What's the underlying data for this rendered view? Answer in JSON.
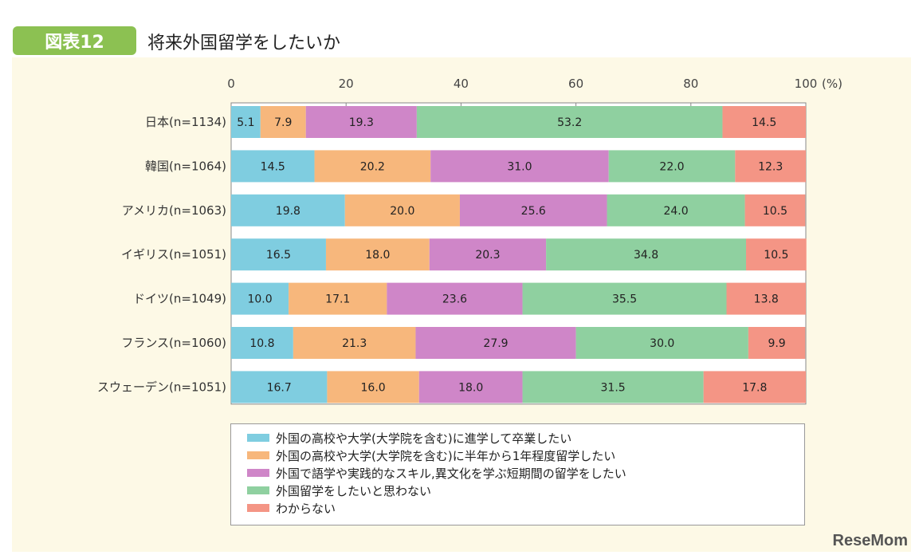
{
  "header": {
    "badge": "図表12",
    "title": "将来外国留学をしたいか"
  },
  "watermark": "ReseMom",
  "chart_data": {
    "type": "bar",
    "stacked": true,
    "orientation": "horizontal",
    "title": "将来外国留学をしたいか",
    "xlim": [
      0,
      100
    ],
    "xticks": [
      0,
      20,
      40,
      60,
      80,
      100
    ],
    "xunit": "(%)",
    "categories": [
      "日本(n=1134)",
      "韓国(n=1064)",
      "アメリカ(n=1063)",
      "イギリス(n=1051)",
      "ドイツ(n=1049)",
      "フランス(n=1060)",
      "スウェーデン(n=1051)"
    ],
    "series": [
      {
        "name": "外国の高校や大学(大学院を含む)に進学して卒業したい",
        "color": "#7fcde0",
        "values": [
          5.1,
          14.5,
          19.8,
          16.5,
          10.0,
          10.8,
          16.7
        ]
      },
      {
        "name": "外国の高校や大学(大学院を含む)に半年から1年程度留学したい",
        "color": "#f7b77c",
        "values": [
          7.9,
          20.2,
          20.0,
          18.0,
          17.1,
          21.3,
          16.0
        ]
      },
      {
        "name": "外国で語学や実践的なスキル,異文化を学ぶ短期間の留学をしたい",
        "color": "#cf86c8",
        "values": [
          19.3,
          31.0,
          25.6,
          20.3,
          23.6,
          27.9,
          18.0
        ]
      },
      {
        "name": "外国留学をしたいと思わない",
        "color": "#8fd0a0",
        "values": [
          53.2,
          22.0,
          24.0,
          34.8,
          35.5,
          30.0,
          31.5
        ]
      },
      {
        "name": "わからない",
        "color": "#f49585",
        "values": [
          14.5,
          12.3,
          10.5,
          10.5,
          13.8,
          9.9,
          17.8
        ]
      }
    ],
    "legend": "bottom"
  }
}
